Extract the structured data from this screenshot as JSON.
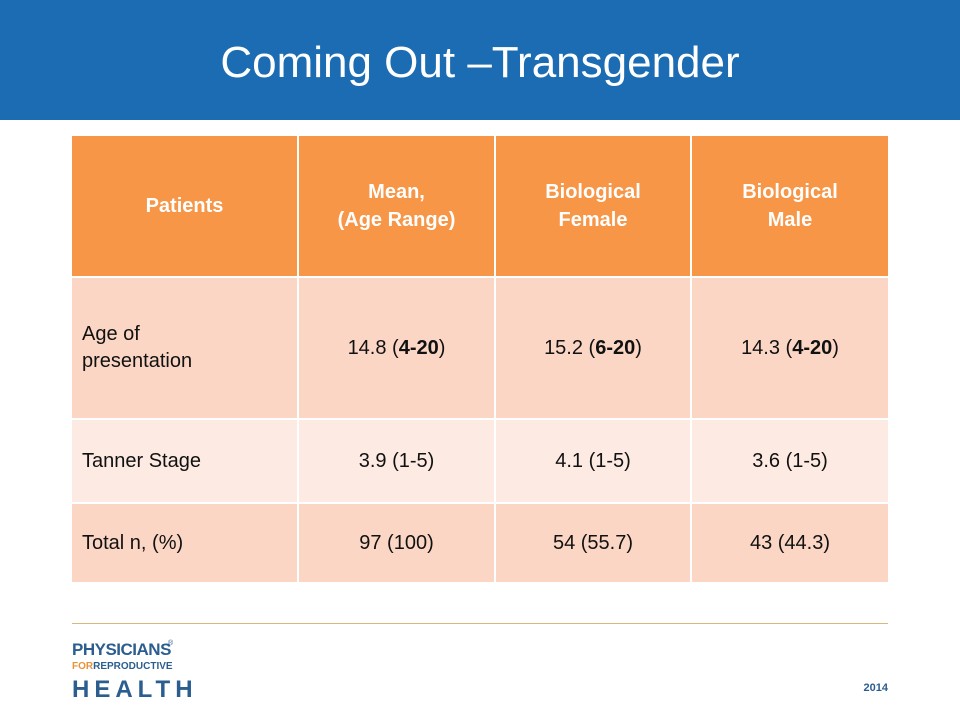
{
  "slide": {
    "title": "Coming Out –Transgender",
    "year": "2014"
  },
  "table": {
    "headers": [
      [
        "Patients"
      ],
      [
        "Mean,",
        "(Age Range)"
      ],
      [
        "Biological",
        "Female"
      ],
      [
        "Biological",
        "Male"
      ]
    ],
    "rows": [
      {
        "label": [
          "Age of",
          "presentation"
        ],
        "mean": [
          "14.8 (",
          "4-20",
          ")"
        ],
        "female": [
          "15.2 (",
          "6-20",
          ")"
        ],
        "male": [
          "14.3 (",
          "4-20",
          ")"
        ]
      },
      {
        "label": "Tanner Stage",
        "mean": "3.9 (1-5)",
        "female": "4.1 (1-5)",
        "male": "3.6 (1-5)"
      },
      {
        "label": "Total n, (%)",
        "mean": "97 (100)",
        "female": "54 (55.7)",
        "male": "43 (44.3)"
      }
    ]
  },
  "logo": {
    "line1": "PHYSICIANS",
    "line2_for": "FOR",
    "line2_rest": "REPRODUCTIVE",
    "line3": "HEALTH",
    "mark": "®"
  }
}
